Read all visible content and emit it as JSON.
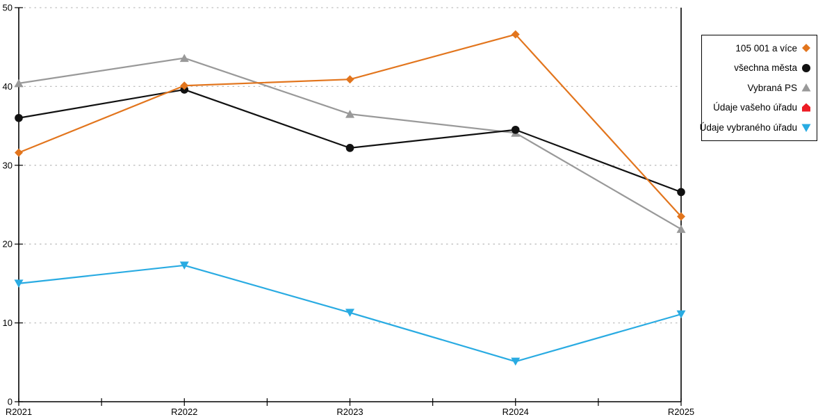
{
  "chart_data": {
    "type": "line",
    "title": "",
    "xlabel": "",
    "ylabel": "",
    "categories": [
      "R2021",
      "R2022",
      "R2023",
      "R2024",
      "R2025"
    ],
    "series": [
      {
        "name": "105 001 a více",
        "color": "#E2751D",
        "marker": "diamond",
        "values": [
          31.6,
          40.1,
          40.9,
          46.6,
          23.5
        ]
      },
      {
        "name": "všechna města",
        "color": "#111111",
        "marker": "circle",
        "values": [
          36.0,
          39.6,
          32.2,
          34.5,
          26.6
        ]
      },
      {
        "name": "Vybraná PS",
        "color": "#999999",
        "marker": "triangle-up",
        "values": [
          40.4,
          43.6,
          36.5,
          34.1,
          21.9
        ]
      },
      {
        "name": "Údaje vašeho úřadu",
        "color": "#ED1C24",
        "marker": "pentagon",
        "values": []
      },
      {
        "name": "Údaje vybraného úřadu",
        "color": "#29ABE2",
        "marker": "triangle-down",
        "values": [
          15.0,
          17.3,
          11.3,
          5.1,
          11.1
        ]
      }
    ],
    "ylim": [
      0,
      50
    ],
    "yticks": [
      0,
      10,
      20,
      30,
      40,
      50
    ],
    "grid": "horizontal-dotted",
    "legend_position": "right",
    "colors": {
      "axis": "#000000",
      "gridline": "#bfbfbf",
      "background": "#ffffff"
    }
  }
}
